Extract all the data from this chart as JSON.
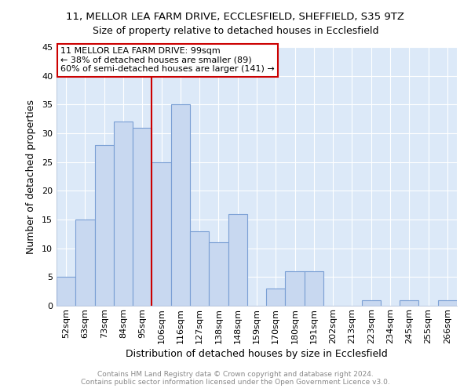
{
  "title": "11, MELLOR LEA FARM DRIVE, ECCLESFIELD, SHEFFIELD, S35 9TZ",
  "subtitle": "Size of property relative to detached houses in Ecclesfield",
  "xlabel": "Distribution of detached houses by size in Ecclesfield",
  "ylabel": "Number of detached properties",
  "bar_labels": [
    "52sqm",
    "63sqm",
    "73sqm",
    "84sqm",
    "95sqm",
    "106sqm",
    "116sqm",
    "127sqm",
    "138sqm",
    "148sqm",
    "159sqm",
    "170sqm",
    "180sqm",
    "191sqm",
    "202sqm",
    "213sqm",
    "223sqm",
    "234sqm",
    "245sqm",
    "255sqm",
    "266sqm"
  ],
  "bar_values": [
    5,
    15,
    28,
    32,
    31,
    25,
    35,
    13,
    11,
    16,
    0,
    3,
    6,
    6,
    0,
    0,
    1,
    0,
    1,
    0,
    1
  ],
  "bar_color": "#c8d8f0",
  "bar_edge_color": "#7a9fd4",
  "vline_x": 4.5,
  "vline_color": "#cc0000",
  "ylim": [
    0,
    45
  ],
  "yticks": [
    0,
    5,
    10,
    15,
    20,
    25,
    30,
    35,
    40,
    45
  ],
  "annotation_title": "11 MELLOR LEA FARM DRIVE: 99sqm",
  "annotation_line1": "← 38% of detached houses are smaller (89)",
  "annotation_line2": "60% of semi-detached houses are larger (141) →",
  "footer1": "Contains HM Land Registry data © Crown copyright and database right 2024.",
  "footer2": "Contains public sector information licensed under the Open Government Licence v3.0.",
  "fig_bg_color": "#ffffff",
  "plot_bg_color": "#dce9f8",
  "grid_color": "#ffffff",
  "title_fontsize": 9.5,
  "subtitle_fontsize": 9,
  "axis_label_fontsize": 9,
  "tick_fontsize": 8,
  "footer_fontsize": 6.5,
  "annotation_fontsize": 8
}
